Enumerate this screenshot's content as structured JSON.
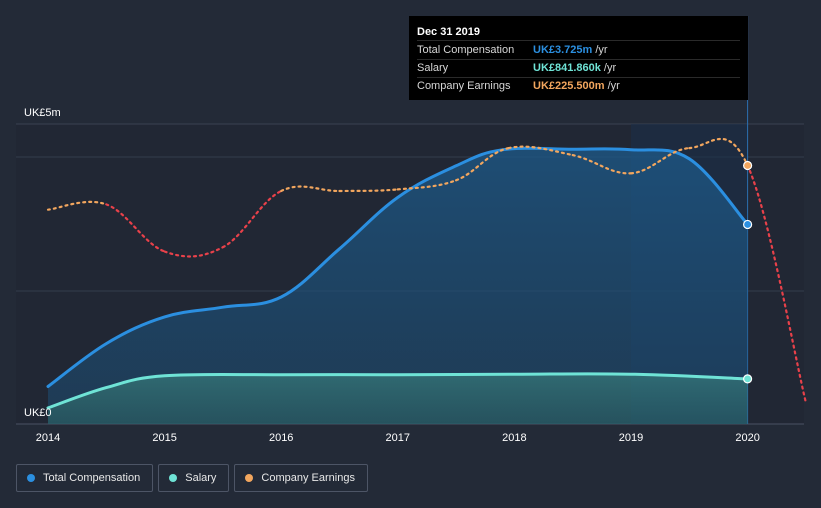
{
  "chart_data": {
    "type": "area",
    "y_axis_labels": {
      "top": "UK£5m",
      "bottom": "UK£0"
    },
    "ylim": [
      0,
      5.6
    ],
    "xlim": [
      2014,
      2020.5
    ],
    "x_ticks": [
      2014,
      2015,
      2016,
      2017,
      2018,
      2019,
      2020
    ],
    "series": [
      {
        "name": "Total Compensation",
        "color": "#2b8fe0",
        "x": [
          2014.0,
          2014.5,
          2015.0,
          2015.5,
          2016.0,
          2016.5,
          2017.0,
          2017.5,
          2017.9,
          2018.5,
          2019.0,
          2019.5,
          2020.0
        ],
        "y": [
          0.7,
          1.5,
          2.0,
          2.18,
          2.37,
          3.27,
          4.23,
          4.82,
          5.12,
          5.13,
          5.12,
          4.95,
          3.725
        ]
      },
      {
        "name": "Salary",
        "color": "#6fe3d6",
        "x": [
          2014.0,
          2014.5,
          2015.0,
          2016.0,
          2017.0,
          2018.0,
          2019.0,
          2020.0
        ],
        "y": [
          0.3,
          0.68,
          0.9,
          0.92,
          0.92,
          0.93,
          0.93,
          0.842
        ]
      },
      {
        "name": "Company Earnings",
        "color": "#f2a65e",
        "negative_color": "#e8414a",
        "x": [
          2014.0,
          2014.5,
          2015.0,
          2015.5,
          2016.0,
          2016.5,
          2017.0,
          2017.5,
          2017.95,
          2018.5,
          2019.0,
          2019.5,
          2020.0,
          2020.5
        ],
        "y": [
          4.0,
          4.1,
          3.22,
          3.3,
          4.35,
          4.35,
          4.38,
          4.55,
          5.15,
          5.02,
          4.68,
          5.15,
          4.825,
          0.4
        ]
      }
    ],
    "legend": {
      "placement": "bottom-left"
    },
    "grid": true
  },
  "tooltip": {
    "date": "Dec 31 2019",
    "rows": [
      {
        "label": "Total Compensation",
        "value": "UK£3.725m",
        "unit": "/yr",
        "color": "#2b8fe0"
      },
      {
        "label": "Salary",
        "value": "UK£841.860k",
        "unit": "/yr",
        "color": "#6fe3d6"
      },
      {
        "label": "Company Earnings",
        "value": "UK£225.500m",
        "unit": "/yr",
        "color": "#f2a65e"
      }
    ]
  },
  "legend_items": [
    {
      "label": "Total Compensation",
      "color": "#2b8fe0"
    },
    {
      "label": "Salary",
      "color": "#6fe3d6"
    },
    {
      "label": "Company Earnings",
      "color": "#f2a65e"
    }
  ]
}
